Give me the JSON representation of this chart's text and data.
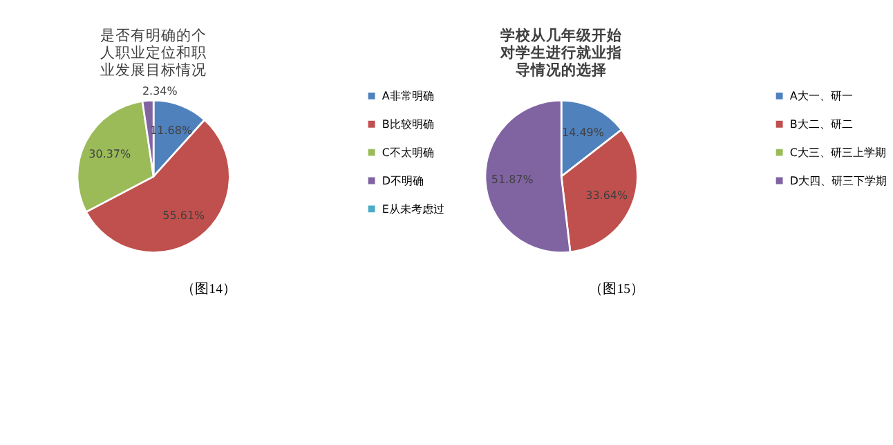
{
  "chart_data": [
    {
      "type": "pie",
      "title": "是否有明确的个人职业定位和职业发展目标情况",
      "categories": [
        "A非常明确",
        "B比较明确",
        "C不太明确",
        "D不明确",
        "E从未考虑过"
      ],
      "values": [
        11.68,
        55.61,
        30.37,
        2.34,
        0
      ],
      "colors": [
        "#4f81bd",
        "#c0504d",
        "#9bbb59",
        "#8064a2",
        "#4bacc6"
      ],
      "value_labels": [
        "11.68%",
        "55.61%",
        "30.37%",
        "2.34%",
        null
      ],
      "legend": "right",
      "annotations": [
        "（图14）"
      ]
    },
    {
      "type": "pie",
      "title": "学校从几年级开始对学生进行就业指导情况的选择",
      "categories": [
        "A大一、研一",
        "B大二、研二",
        "C大三、研三上学期",
        "D大四、研三下学期"
      ],
      "values": [
        14.49,
        33.64,
        0,
        51.87
      ],
      "colors": [
        "#4f81bd",
        "#c0504d",
        "#9bbb59",
        "#8064a2"
      ],
      "value_labels": [
        "14.49%",
        "33.64%",
        null,
        "51.87%"
      ],
      "legend": "right",
      "annotations": [
        "（图15）"
      ]
    }
  ]
}
